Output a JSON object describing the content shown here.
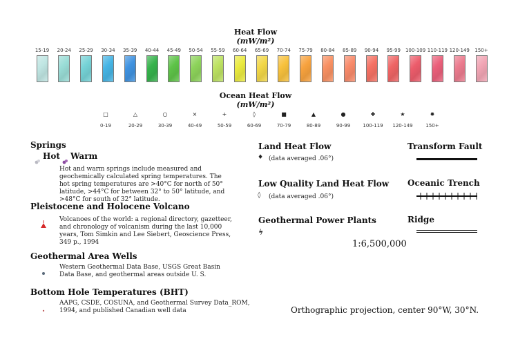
{
  "heat_flow": {
    "title": "Heat Flow",
    "units": "(mW/m²)",
    "swatches": [
      {
        "label": "15-19",
        "color": "#bfe5e2"
      },
      {
        "label": "20-24",
        "color": "#99dcd6"
      },
      {
        "label": "25-29",
        "color": "#75d2d6"
      },
      {
        "label": "30-34",
        "color": "#45b4e4"
      },
      {
        "label": "35-39",
        "color": "#3f92e0"
      },
      {
        "label": "40-44",
        "color": "#36b24c"
      },
      {
        "label": "45-49",
        "color": "#5ec348"
      },
      {
        "label": "50-54",
        "color": "#8dd35a"
      },
      {
        "label": "55-59",
        "color": "#bde262"
      },
      {
        "label": "60-64",
        "color": "#eaea3f"
      },
      {
        "label": "65-69",
        "color": "#f2d747"
      },
      {
        "label": "70-74",
        "color": "#f7c13c"
      },
      {
        "label": "75-79",
        "color": "#f7a23e"
      },
      {
        "label": "80-84",
        "color": "#f89062"
      },
      {
        "label": "85-89",
        "color": "#f88a6a"
      },
      {
        "label": "90-94",
        "color": "#f57163"
      },
      {
        "label": "95-99",
        "color": "#ee6464"
      },
      {
        "label": "100-109",
        "color": "#ec5c6b"
      },
      {
        "label": "110-119",
        "color": "#ea5f7a"
      },
      {
        "label": "120-149",
        "color": "#eb7b8e"
      },
      {
        "label": "150+",
        "color": "#f1a5b4"
      }
    ]
  },
  "ocean_heat_flow": {
    "title": "Ocean Heat Flow",
    "units": "(mW/m²)",
    "items": [
      {
        "symbol": "□",
        "label": "0-19"
      },
      {
        "symbol": "△",
        "label": "20-29"
      },
      {
        "symbol": "○",
        "label": "30-39"
      },
      {
        "symbol": "×",
        "label": "40-49"
      },
      {
        "symbol": "+",
        "label": "50-59"
      },
      {
        "symbol": "◊",
        "label": "60-69"
      },
      {
        "symbol": "■",
        "label": "70-79"
      },
      {
        "symbol": "▲",
        "label": "80-89"
      },
      {
        "symbol": "●",
        "label": "90-99"
      },
      {
        "symbol": "✚",
        "label": "100-119"
      },
      {
        "symbol": "★",
        "label": "120-149"
      },
      {
        "symbol": "✸",
        "label": "150+"
      }
    ]
  },
  "springs": {
    "title": "Springs",
    "hot": "Hot",
    "warm": "Warm",
    "hot_color": "#b9b9c2",
    "warm_color": "#8a4aa0",
    "description": "Hot and warm springs include measured and geochemically calculated spring temperatures. The hot spring temperatures are >40°C for north of 50° latitude, >44°C for between 32° to 50° latitude, and >48°C for south of 32° latitude."
  },
  "volcano": {
    "title": "Pleistocene and Holocene Volcano",
    "color": "#d62a2a",
    "description": "Volcanoes of the world: a regional directory, gazetteer, and chronology of volcanism during the last 10,000 years, Tom Simkin and Lee Siebert, Geoscience Press, 349 p., 1994"
  },
  "geothermal_wells": {
    "title": "Geothermal Area Wells",
    "description": "Western Geothermal Data Base, USGS Great Basin Data Base, and geothermal areas outside U. S."
  },
  "bht": {
    "title": "Bottom Hole Temperatures (BHT)",
    "description": "AAPG, CSDE, COSUNA, and Geothermal Survey Data_ROM, 1994, and published Canadian well data"
  },
  "land_heat_flow": {
    "title": "Land Heat Flow",
    "symbol": "♦",
    "note": "(data averaged .06°)"
  },
  "low_quality": {
    "title": "Low Quality Land Heat Flow",
    "symbol": "◊",
    "note": "(data averaged .06°)"
  },
  "power_plants": {
    "title": "Geothermal Power Plants",
    "symbol": "ϟ"
  },
  "transform_fault": {
    "title": "Transform Fault"
  },
  "oceanic_trench": {
    "title": "Oceanic Trench"
  },
  "ridge": {
    "title": "Ridge"
  },
  "scale": "1:6,500,000",
  "projection": "Orthographic projection, center 90°W, 30°N."
}
